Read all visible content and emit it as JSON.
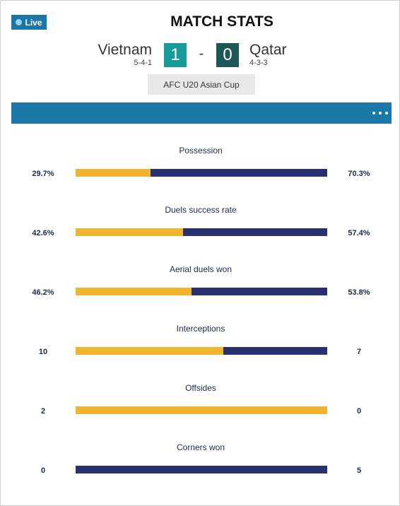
{
  "live_label": "Live",
  "title": "MATCH STATS",
  "home_team": {
    "name": "Vietnam",
    "formation": "5-4-1",
    "score": "1"
  },
  "away_team": {
    "name": "Qatar",
    "formation": "4-3-3",
    "score": "0"
  },
  "score_separator": "-",
  "competition": "AFC U20 Asian Cup",
  "colors": {
    "live_badge": "#1a78a8",
    "header_bar": "#1a78a8",
    "home_score_bg": "#169c98",
    "away_score_bg": "#1e5758",
    "home_bar": "#f2b42d",
    "away_bar": "#28306f"
  },
  "icons": {
    "menu": "more-horizontal-icon"
  },
  "stats": [
    {
      "label": "Possession",
      "home": "29.7%",
      "away": "70.3%",
      "home_share": 0.297
    },
    {
      "label": "Duels success rate",
      "home": "42.6%",
      "away": "57.4%",
      "home_share": 0.426
    },
    {
      "label": "Aerial duels won",
      "home": "46.2%",
      "away": "53.8%",
      "home_share": 0.462
    },
    {
      "label": "Interceptions",
      "home": "10",
      "away": "7",
      "home_share": 0.588
    },
    {
      "label": "Offsides",
      "home": "2",
      "away": "0",
      "home_share": 1.0
    },
    {
      "label": "Corners won",
      "home": "0",
      "away": "5",
      "home_share": 0.0
    }
  ]
}
